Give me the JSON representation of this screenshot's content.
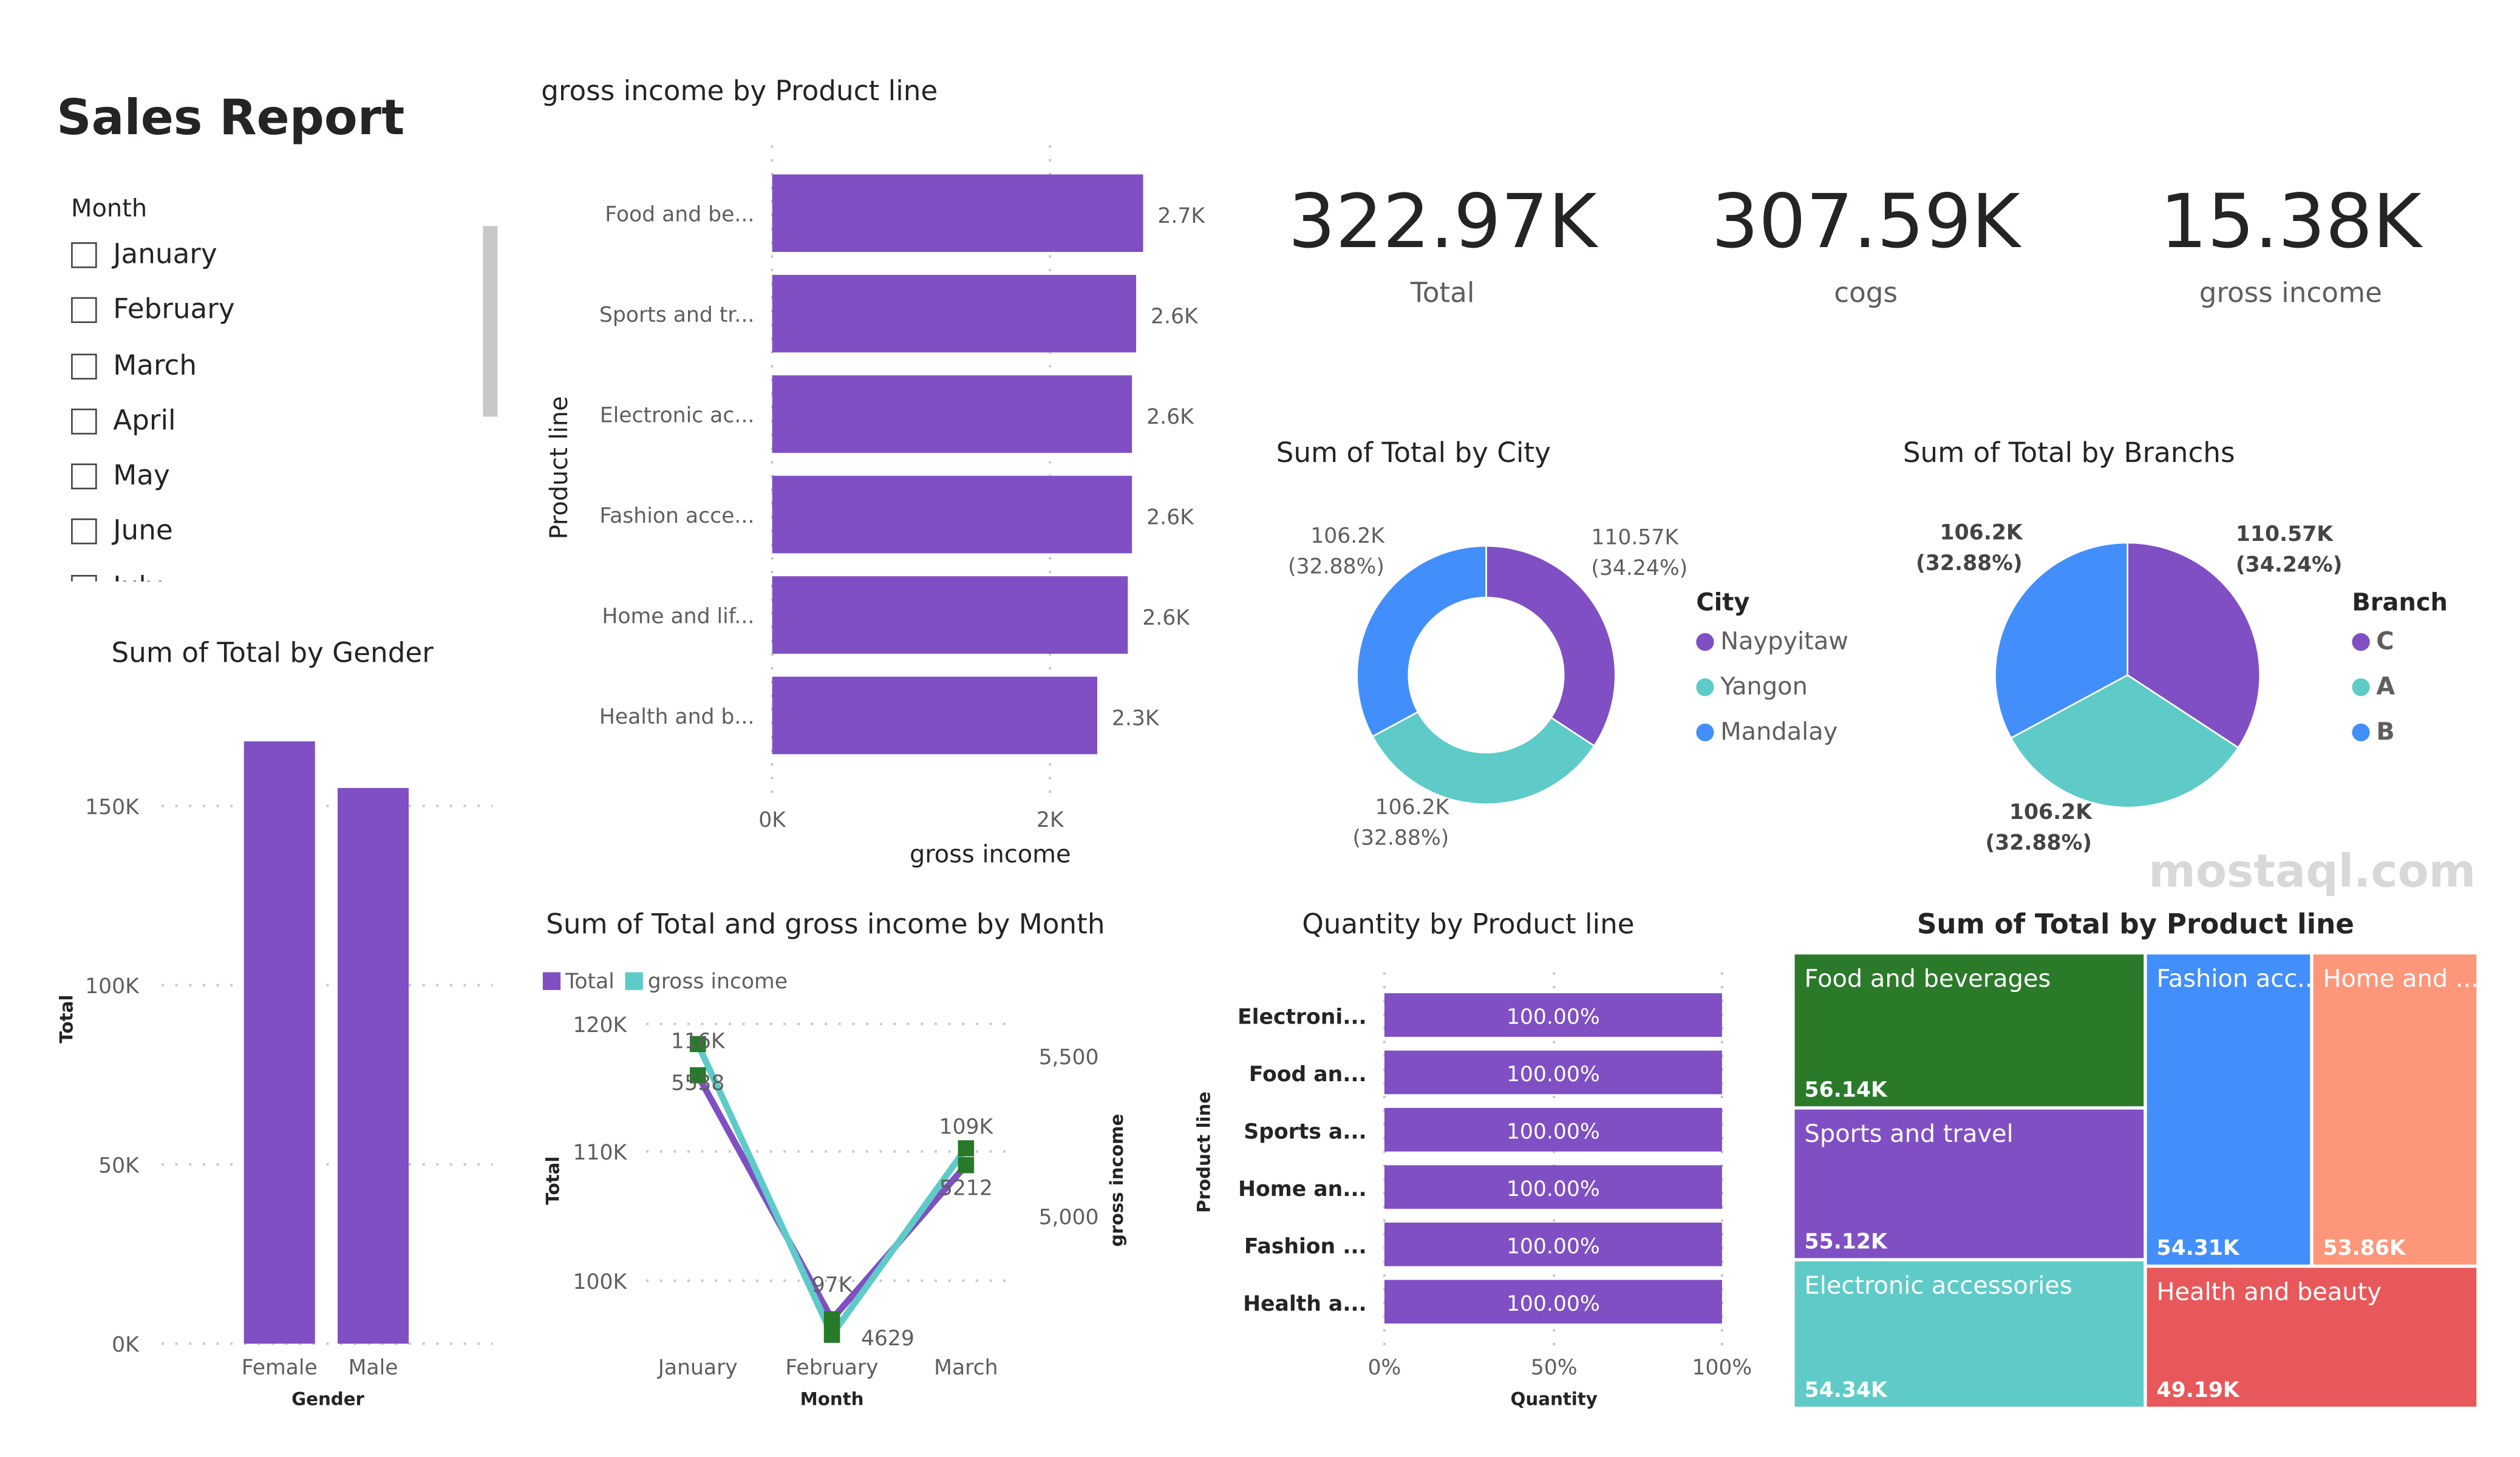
{
  "report": {
    "title": "Sales Report"
  },
  "slicer": {
    "label": "Month",
    "items": [
      "January",
      "February",
      "March",
      "April",
      "May",
      "June",
      "July"
    ]
  },
  "kpis": [
    {
      "value": "322.97K",
      "label": "Total"
    },
    {
      "value": "307.59K",
      "label": "cogs"
    },
    {
      "value": "15.38K",
      "label": "gross income"
    }
  ],
  "visual_titles": {
    "gender": "Sum of Total by Gender",
    "product_gross": "gross income by Product line",
    "city": "Sum of Total by City",
    "branch": "Sum of Total by Branchs",
    "month": "Sum of Total and gross income by Month",
    "quantity": "Quantity by Product line",
    "treemap": "Sum of Total by Product line"
  },
  "watermark": "mostaql.com",
  "colors": {
    "purple": "#7f4fc3",
    "teal": "#5ecbc8",
    "blue": "#428ffb",
    "green": "#2a7a2a",
    "salmon": "#fe967a",
    "red": "#e8585a",
    "marker": "#287a28"
  },
  "chart_data": [
    {
      "type": "bar",
      "categories": [
        "Female",
        "Male"
      ],
      "values": [
        168000,
        155000
      ],
      "xlabel": "Gender",
      "ylabel": "Total",
      "yticks": [
        "0K",
        "50K",
        "100K",
        "150K"
      ],
      "ylim": [
        0,
        170000
      ],
      "grid": true
    },
    {
      "type": "bar",
      "orientation": "horizontal",
      "categories": [
        "Food and be...",
        "Sports and tr...",
        "Electronic ac...",
        "Fashion acce...",
        "Home and lif...",
        "Health and b..."
      ],
      "values": [
        2670,
        2620,
        2590,
        2590,
        2560,
        2340
      ],
      "data_labels": [
        "2.7K",
        "2.6K",
        "2.6K",
        "2.6K",
        "2.6K",
        "2.3K"
      ],
      "xlabel": "gross income",
      "ylabel": "Product line",
      "xticks": [
        "0K",
        "2K"
      ],
      "grid": true
    },
    {
      "type": "pie",
      "variant": "donut",
      "legend_title": "City",
      "categories": [
        "Naypyitaw",
        "Yangon",
        "Mandalay"
      ],
      "values": [
        110570,
        106200,
        106200
      ],
      "data_labels": [
        [
          "110.57K",
          "(34.24%)"
        ],
        [
          "106.2K",
          "(32.88%)"
        ],
        [
          "106.2K",
          "(32.88%)"
        ]
      ],
      "legend": "right"
    },
    {
      "type": "pie",
      "legend_title": "Branch",
      "categories": [
        "C",
        "A",
        "B"
      ],
      "values": [
        110570,
        106200,
        106200
      ],
      "data_labels": [
        [
          "110.57K",
          "(34.24%)"
        ],
        [
          "106.2K",
          "(32.88%)"
        ],
        [
          "106.2K",
          "(32.88%)"
        ]
      ],
      "legend": "right"
    },
    {
      "type": "line",
      "categories": [
        "January",
        "February",
        "March"
      ],
      "series": [
        {
          "name": "Total",
          "values": [
            116000,
            97000,
            109000
          ],
          "data_labels": [
            "116K",
            "97K",
            "109K"
          ]
        },
        {
          "name": "gross income",
          "values": [
            5538,
            4629,
            5212
          ],
          "data_labels": [
            "5538",
            "4629",
            "5212"
          ]
        }
      ],
      "xlabel": "Month",
      "ylabel": "Total",
      "y2label": "gross income",
      "yticks": [
        "100K",
        "110K",
        "120K"
      ],
      "y2ticks": [
        "5,000",
        "5,500"
      ],
      "legend": "top-left",
      "grid": true
    },
    {
      "type": "bar",
      "orientation": "horizontal",
      "stacked": "100%",
      "categories": [
        "Electroni...",
        "Food an...",
        "Sports a...",
        "Home an...",
        "Fashion ...",
        "Health a..."
      ],
      "values": [
        100,
        100,
        100,
        100,
        100,
        100
      ],
      "data_labels": [
        "100.00%",
        "100.00%",
        "100.00%",
        "100.00%",
        "100.00%",
        "100.00%"
      ],
      "xlabel": "Quantity",
      "ylabel": "Product line",
      "xticks": [
        "0%",
        "50%",
        "100%"
      ],
      "grid": true
    },
    {
      "type": "treemap",
      "categories": [
        "Food and beverages",
        "Sports and travel",
        "Electronic accessories",
        "Fashion acc...",
        "Home and ...",
        "Health and beauty"
      ],
      "values": [
        56140,
        55120,
        54340,
        54310,
        53860,
        49190
      ],
      "data_labels": [
        "56.14K",
        "55.12K",
        "54.34K",
        "54.31K",
        "53.86K",
        "49.19K"
      ]
    }
  ]
}
